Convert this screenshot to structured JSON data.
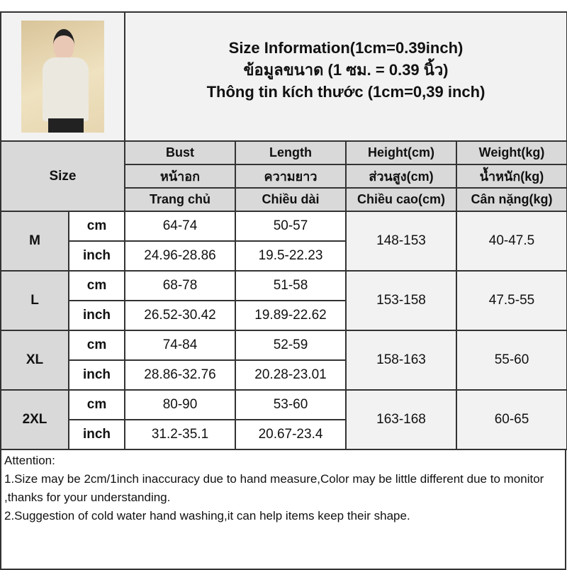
{
  "title": {
    "line1": "Size Information(1cm=0.39inch)",
    "line2": "ข้อมูลขนาด (1 ซม. = 0.39 นิ้ว)",
    "line3": "Thông tin kích thước (1cm=0,39 inch)"
  },
  "headers": {
    "size": "Size",
    "columns": [
      {
        "en": "Bust",
        "th": "หน้าอก",
        "vi": "Trang chủ"
      },
      {
        "en": "Length",
        "th": "ความยาว",
        "vi": "Chiều dài"
      },
      {
        "en": "Height(cm)",
        "th": "ส่วนสูง(cm)",
        "vi": "Chiều cao(cm)"
      },
      {
        "en": "Weight(kg)",
        "th": "น้ำหนัก(kg)",
        "vi": "Cân nặng(kg)"
      }
    ]
  },
  "units": {
    "cm": "cm",
    "inch": "inch"
  },
  "rows": [
    {
      "size": "M",
      "bust_cm": "64-74",
      "length_cm": "50-57",
      "bust_in": "24.96-28.86",
      "length_in": "19.5-22.23",
      "height": "148-153",
      "weight": "40-47.5"
    },
    {
      "size": "L",
      "bust_cm": "68-78",
      "length_cm": "51-58",
      "bust_in": "26.52-30.42",
      "length_in": "19.89-22.62",
      "height": "153-158",
      "weight": "47.5-55"
    },
    {
      "size": "XL",
      "bust_cm": "74-84",
      "length_cm": "52-59",
      "bust_in": "28.86-32.76",
      "length_in": "20.28-23.01",
      "height": "158-163",
      "weight": "55-60"
    },
    {
      "size": "2XL",
      "bust_cm": "80-90",
      "length_cm": "53-60",
      "bust_in": "31.2-35.1",
      "length_in": "20.67-23.4",
      "height": "163-168",
      "weight": "60-65"
    }
  ],
  "attention": {
    "heading": "Attention:",
    "note1": "1.Size may be 2cm/1inch inaccuracy due to hand measure,Color may be little different due to monitor ,thanks for your understanding.",
    "note2": "2.Suggestion of cold water hand washing,it can help items keep their shape."
  }
}
